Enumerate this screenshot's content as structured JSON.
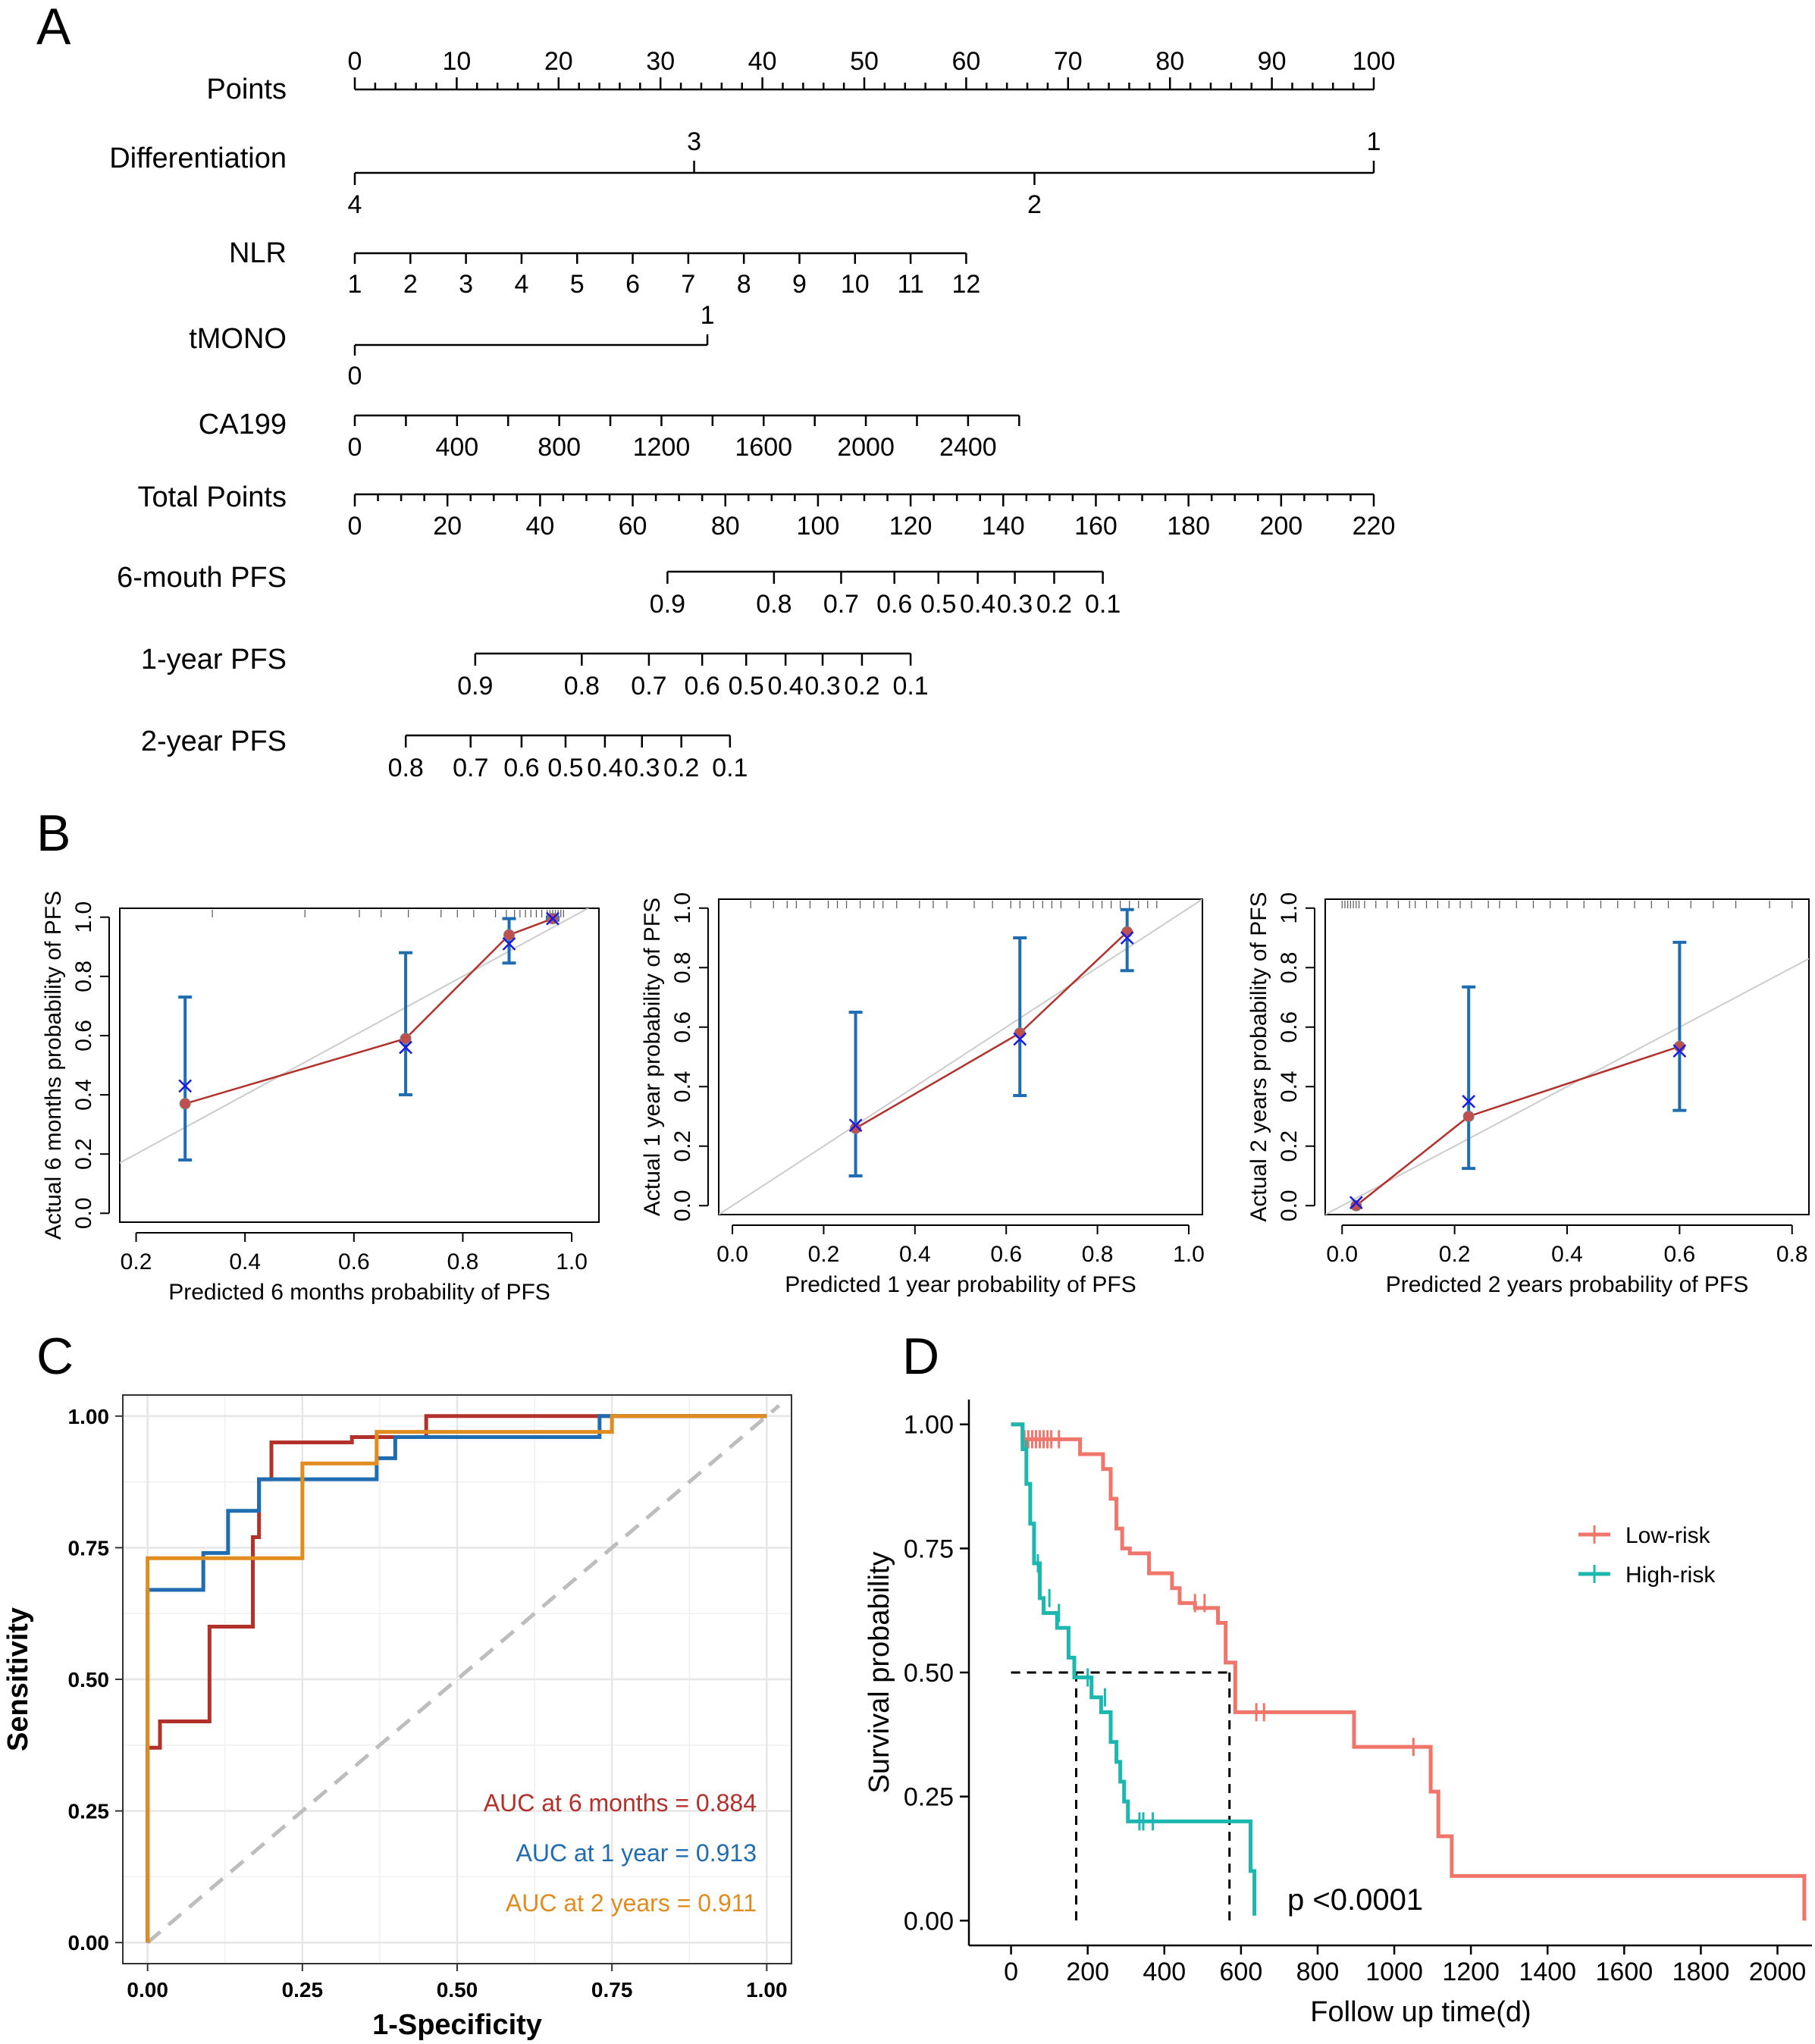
{
  "panels": {
    "a": "A",
    "b": "B",
    "c": "C",
    "d": "D"
  },
  "chart_data": [
    {
      "type": "nomogram",
      "panel": "A",
      "rows": [
        {
          "label": "Points",
          "range": [
            0,
            100
          ],
          "ticks": [
            "0",
            "10",
            "20",
            "30",
            "40",
            "50",
            "60",
            "70",
            "80",
            "90",
            "100"
          ],
          "tick_values": [
            0,
            10,
            20,
            30,
            40,
            50,
            60,
            70,
            80,
            90,
            100
          ],
          "minor_step": 2
        },
        {
          "label": "Differentiation",
          "categories": [
            {
              "label": "4",
              "points": 0
            },
            {
              "label": "3",
              "points": 33.3
            },
            {
              "label": "2",
              "points": 66.7
            },
            {
              "label": "1",
              "points": 100
            }
          ]
        },
        {
          "label": "NLR",
          "ticks": [
            "1",
            "2",
            "3",
            "4",
            "5",
            "6",
            "7",
            "8",
            "9",
            "10",
            "11",
            "12"
          ],
          "points_range": [
            0,
            60
          ]
        },
        {
          "label": "tMONO",
          "categories": [
            {
              "label": "0",
              "points": 0
            },
            {
              "label": "1",
              "points": 34.6
            }
          ]
        },
        {
          "label": "CA199",
          "ticks": [
            "0",
            "400",
            "800",
            "1200",
            "1600",
            "2000",
            "2400"
          ],
          "tick_values": [
            0,
            400,
            800,
            1200,
            1600,
            2000,
            2400
          ],
          "value_range": [
            0,
            2600
          ],
          "points_range": [
            0,
            65.2
          ]
        },
        {
          "label": "Total Points",
          "range": [
            0,
            220
          ],
          "ticks": [
            "0",
            "20",
            "40",
            "60",
            "80",
            "100",
            "120",
            "140",
            "160",
            "180",
            "200",
            "220"
          ],
          "tick_values": [
            0,
            20,
            40,
            60,
            80,
            100,
            120,
            140,
            160,
            180,
            200,
            220
          ]
        },
        {
          "label": "6-mouth PFS",
          "ticks": [
            "0.9",
            "0.8",
            "0.7",
            "0.6",
            "0.5",
            "0.4",
            "0.3",
            "0.2",
            "0.1"
          ],
          "total_points": [
            67.5,
            90.5,
            105,
            116.5,
            126,
            134.5,
            142.5,
            151,
            161.5
          ]
        },
        {
          "label": "1-year PFS",
          "ticks": [
            "0.9",
            "0.8",
            "0.7",
            "0.6",
            "0.5",
            "0.4",
            "0.3",
            "0.2",
            "0.1"
          ],
          "total_points": [
            26,
            49,
            63.5,
            75,
            84.5,
            93,
            101,
            109.5,
            120
          ]
        },
        {
          "label": "2-year PFS",
          "ticks": [
            "0.8",
            "0.7",
            "0.6",
            "0.5",
            "0.4",
            "0.3",
            "0.2",
            "0.1"
          ],
          "total_points": [
            11,
            25,
            36,
            45.5,
            54,
            62,
            70.5,
            81
          ]
        }
      ]
    },
    {
      "type": "calibration",
      "panel": "B1",
      "xlabel": "Predicted 6 months probability of PFS",
      "ylabel": "Actual 6 months probability of PFS",
      "xlim": [
        0.17,
        1.05
      ],
      "ylim": [
        -0.03,
        1.03
      ],
      "xticks": [
        "0.2",
        "0.4",
        "0.6",
        "0.8",
        "1.0"
      ],
      "xtick_values": [
        0.2,
        0.4,
        0.6,
        0.8,
        1.0
      ],
      "yticks": [
        "0.0",
        "0.2",
        "0.4",
        "0.6",
        "0.8",
        "1.0"
      ],
      "ytick_values": [
        0,
        0.2,
        0.4,
        0.6,
        0.8,
        1.0
      ],
      "predicted": [
        0.29,
        0.695,
        0.885,
        0.965
      ],
      "observed": [
        0.37,
        0.59,
        0.94,
        0.995
      ],
      "bias_corrected": [
        0.43,
        0.56,
        0.91,
        0.995
      ],
      "ci_low": [
        0.18,
        0.4,
        0.845,
        0.99
      ],
      "ci_high": [
        0.73,
        0.88,
        0.995,
        1.0
      ],
      "rug": [
        0.34,
        0.51,
        0.61,
        0.65,
        0.7,
        0.76,
        0.79,
        0.82,
        0.86,
        0.88,
        0.895,
        0.905,
        0.915,
        0.925,
        0.935,
        0.945,
        0.955,
        0.96,
        0.965,
        0.97,
        0.975,
        0.98,
        0.985
      ]
    },
    {
      "type": "calibration",
      "panel": "B2",
      "xlabel": "Predicted 1 year probability of PFS",
      "ylabel": "Actual 1 year probability of PFS",
      "xlim": [
        -0.03,
        1.03
      ],
      "ylim": [
        -0.03,
        1.03
      ],
      "xticks": [
        "0.0",
        "0.2",
        "0.4",
        "0.6",
        "0.8",
        "1.0"
      ],
      "xtick_values": [
        0,
        0.2,
        0.4,
        0.6,
        0.8,
        1.0
      ],
      "yticks": [
        "0.0",
        "0.2",
        "0.4",
        "0.6",
        "0.8",
        "1.0"
      ],
      "ytick_values": [
        0,
        0.2,
        0.4,
        0.6,
        0.8,
        1.0
      ],
      "predicted": [
        0.27,
        0.63,
        0.865
      ],
      "observed": [
        0.26,
        0.58,
        0.92
      ],
      "bias_corrected": [
        0.27,
        0.56,
        0.9
      ],
      "ci_low": [
        0.1,
        0.37,
        0.79
      ],
      "ci_high": [
        0.65,
        0.9,
        0.995
      ],
      "rug": [
        0.04,
        0.09,
        0.12,
        0.14,
        0.17,
        0.21,
        0.23,
        0.25,
        0.28,
        0.31,
        0.33,
        0.36,
        0.41,
        0.44,
        0.47,
        0.53,
        0.57,
        0.61,
        0.63,
        0.66,
        0.68,
        0.7,
        0.72,
        0.76,
        0.79,
        0.81,
        0.83,
        0.85,
        0.87,
        0.89,
        0.91,
        0.93
      ]
    },
    {
      "type": "calibration",
      "panel": "B3",
      "xlabel": "Predicted 2 years probability of PFS",
      "ylabel": "Actual 2 years probability of PFS",
      "xlim": [
        -0.03,
        0.83
      ],
      "ylim": [
        -0.03,
        1.03
      ],
      "xticks": [
        "0.0",
        "0.2",
        "0.4",
        "0.6",
        "0.8"
      ],
      "xtick_values": [
        0,
        0.2,
        0.4,
        0.6,
        0.8
      ],
      "yticks": [
        "0.0",
        "0.2",
        "0.4",
        "0.6",
        "0.8",
        "1.0"
      ],
      "ytick_values": [
        0,
        0.2,
        0.4,
        0.6,
        0.8,
        1.0
      ],
      "predicted": [
        0.025,
        0.225,
        0.6
      ],
      "observed": [
        0.0,
        0.3,
        0.535
      ],
      "bias_corrected": [
        0.01,
        0.35,
        0.52
      ],
      "ci_low": [
        null,
        0.125,
        0.32
      ],
      "ci_high": [
        null,
        0.735,
        0.885
      ],
      "rug": [
        0.0,
        0.005,
        0.01,
        0.015,
        0.02,
        0.025,
        0.03,
        0.04,
        0.06,
        0.08,
        0.1,
        0.12,
        0.13,
        0.15,
        0.17,
        0.19,
        0.21,
        0.23,
        0.26,
        0.28,
        0.31,
        0.34,
        0.37,
        0.4,
        0.43,
        0.46,
        0.49,
        0.52,
        0.55,
        0.58,
        0.62,
        0.66,
        0.7,
        0.76,
        0.8
      ]
    },
    {
      "type": "line",
      "subtype": "roc",
      "panel": "C",
      "xlabel": "1-Specificity",
      "ylabel": "Sensitivity",
      "xlim": [
        -0.04,
        1.04
      ],
      "ylim": [
        -0.04,
        1.04
      ],
      "xticks": [
        "0.00",
        "0.25",
        "0.50",
        "0.75",
        "1.00"
      ],
      "xtick_values": [
        0,
        0.25,
        0.5,
        0.75,
        1.0
      ],
      "yticks": [
        "0.00",
        "0.25",
        "0.50",
        "0.75",
        "1.00"
      ],
      "ytick_values": [
        0,
        0.25,
        0.5,
        0.75,
        1.0
      ],
      "series": [
        {
          "name": "6 months",
          "color": "#b2312b",
          "auc_label": "AUC at 6 months = 0.884",
          "x": [
            0,
            0,
            0.02,
            0.02,
            0.1,
            0.1,
            0.17,
            0.17,
            0.18,
            0.18,
            0.2,
            0.2,
            0.33,
            0.33,
            0.45,
            0.45,
            1.0
          ],
          "y": [
            0,
            0.37,
            0.37,
            0.42,
            0.42,
            0.6,
            0.6,
            0.77,
            0.77,
            0.88,
            0.88,
            0.95,
            0.95,
            0.96,
            0.96,
            1.0,
            1.0
          ]
        },
        {
          "name": "1 year",
          "color": "#1f6db0",
          "auc_label": "AUC at 1 year = 0.913",
          "x": [
            0,
            0,
            0.09,
            0.09,
            0.13,
            0.13,
            0.18,
            0.18,
            0.37,
            0.37,
            0.4,
            0.4,
            0.73,
            0.73,
            1.0
          ],
          "y": [
            0,
            0.67,
            0.67,
            0.74,
            0.74,
            0.82,
            0.82,
            0.88,
            0.88,
            0.92,
            0.92,
            0.96,
            0.96,
            1.0,
            1.0
          ]
        },
        {
          "name": "2 years",
          "color": "#e08c1e",
          "auc_label": "AUC at 2 years = 0.911",
          "x": [
            0,
            0,
            0.25,
            0.25,
            0.37,
            0.37,
            0.75,
            0.75,
            1.0
          ],
          "y": [
            0,
            0.73,
            0.73,
            0.91,
            0.91,
            0.97,
            0.97,
            1.0,
            1.0
          ]
        }
      ],
      "diagonal": true
    },
    {
      "type": "line",
      "subtype": "kaplan-meier",
      "panel": "D",
      "xlabel": "Follow up time(d)",
      "ylabel": "Survival probability",
      "xlim": [
        -110,
        2090
      ],
      "ylim": [
        -0.05,
        1.05
      ],
      "xticks": [
        "0",
        "200",
        "400",
        "600",
        "800",
        "1000",
        "1200",
        "1400",
        "1600",
        "1800",
        "2000"
      ],
      "xtick_values": [
        0,
        200,
        400,
        600,
        800,
        1000,
        1200,
        1400,
        1600,
        1800,
        2000
      ],
      "yticks": [
        "0.00",
        "0.25",
        "0.50",
        "0.75",
        "1.00"
      ],
      "ytick_values": [
        0,
        0.25,
        0.5,
        0.75,
        1.0
      ],
      "pvalue": "p <0.0001",
      "legend_position": "right",
      "series": [
        {
          "name": "Low-risk",
          "color": "#f0756b",
          "x": [
            0,
            30,
            30,
            180,
            180,
            240,
            240,
            260,
            260,
            275,
            275,
            290,
            290,
            310,
            310,
            360,
            360,
            420,
            420,
            440,
            440,
            480,
            480,
            540,
            540,
            560,
            560,
            585,
            585,
            895,
            895,
            1095,
            1095,
            1115,
            1115,
            1150,
            1150,
            2070,
            2070
          ],
          "y": [
            1,
            1,
            0.97,
            0.97,
            0.94,
            0.94,
            0.91,
            0.91,
            0.85,
            0.85,
            0.79,
            0.79,
            0.75,
            0.75,
            0.74,
            0.74,
            0.7,
            0.7,
            0.67,
            0.67,
            0.64,
            0.64,
            0.63,
            0.63,
            0.6,
            0.6,
            0.52,
            0.52,
            0.42,
            0.42,
            0.35,
            0.35,
            0.26,
            0.26,
            0.17,
            0.17,
            0.09,
            0.09,
            0.0
          ],
          "censor_x": [
            35,
            45,
            55,
            65,
            75,
            85,
            95,
            105,
            125,
            480,
            505,
            640,
            660,
            1050
          ],
          "censor_y": [
            0.97,
            0.97,
            0.97,
            0.97,
            0.97,
            0.97,
            0.97,
            0.97,
            0.97,
            0.64,
            0.64,
            0.42,
            0.42,
            0.35
          ]
        },
        {
          "name": "High-risk",
          "color": "#1cb8b0",
          "x": [
            0,
            30,
            30,
            40,
            40,
            50,
            50,
            60,
            60,
            75,
            75,
            85,
            85,
            120,
            120,
            150,
            150,
            165,
            165,
            210,
            210,
            235,
            235,
            260,
            260,
            275,
            275,
            285,
            285,
            295,
            295,
            305,
            305,
            625,
            625,
            635,
            635
          ],
          "y": [
            1,
            1,
            0.95,
            0.95,
            0.88,
            0.88,
            0.8,
            0.8,
            0.72,
            0.72,
            0.65,
            0.65,
            0.62,
            0.62,
            0.59,
            0.59,
            0.53,
            0.53,
            0.49,
            0.49,
            0.45,
            0.45,
            0.42,
            0.42,
            0.36,
            0.36,
            0.32,
            0.32,
            0.28,
            0.28,
            0.24,
            0.24,
            0.2,
            0.2,
            0.1,
            0.1,
            0.01
          ],
          "censor_x": [
            40,
            70,
            100,
            125,
            200,
            245,
            335,
            345,
            370
          ],
          "censor_y": [
            0.95,
            0.72,
            0.65,
            0.62,
            0.49,
            0.45,
            0.2,
            0.2,
            0.2
          ]
        }
      ],
      "median_lines": [
        {
          "x": 170,
          "y": 0.5
        },
        {
          "x": 570,
          "y": 0.5
        }
      ]
    }
  ]
}
